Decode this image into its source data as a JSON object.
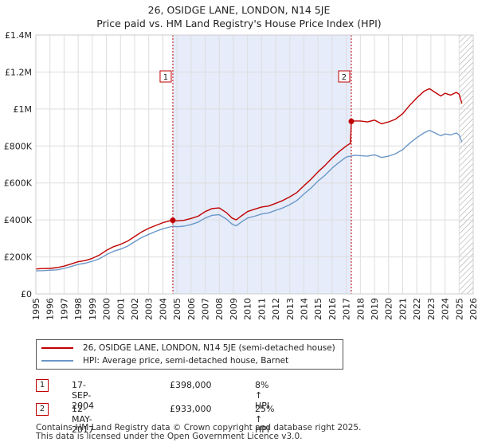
{
  "title": "26, OSIDGE LANE, LONDON, N14 5JE",
  "subtitle": "Price paid vs. HM Land Registry's House Price Index (HPI)",
  "colors": {
    "property": "#c00000",
    "hpi": "#6b97c8",
    "shade": "#e6ecfa",
    "hatch": "#999999",
    "grid": "#dddddd"
  },
  "chart_data": {
    "type": "line",
    "xlim": [
      1995,
      2026
    ],
    "ylim": [
      0,
      1400000
    ],
    "y_ticks": [
      0,
      200000,
      400000,
      600000,
      800000,
      1000000,
      1200000,
      1400000
    ],
    "y_tick_labels": [
      "£0",
      "£200K",
      "£400K",
      "£600K",
      "£800K",
      "£1M",
      "£1.2M",
      "£1.4M"
    ],
    "x_ticks": [
      "1995",
      "1996",
      "1997",
      "1998",
      "1999",
      "2000",
      "2001",
      "2002",
      "2003",
      "2004",
      "2005",
      "2006",
      "2007",
      "2008",
      "2009",
      "2010",
      "2011",
      "2012",
      "2013",
      "2014",
      "2015",
      "2016",
      "2017",
      "2018",
      "2019",
      "2020",
      "2021",
      "2022",
      "2023",
      "2024",
      "2025",
      "2026"
    ],
    "shaded_region": [
      2004.71,
      2017.36
    ],
    "forecast_from": 2025.0,
    "series": [
      {
        "name": "26, OSIDGE LANE, LONDON, N14 5JE (semi-detached house)",
        "color": "#c00000",
        "x": [
          1995.0,
          1995.5,
          1996.0,
          1996.5,
          1997.0,
          1997.5,
          1998.0,
          1998.5,
          1999.0,
          1999.5,
          2000.0,
          2000.5,
          2001.0,
          2001.5,
          2002.0,
          2002.5,
          2003.0,
          2003.5,
          2004.0,
          2004.5,
          2004.71,
          2005.0,
          2005.5,
          2006.0,
          2006.5,
          2007.0,
          2007.5,
          2008.0,
          2008.5,
          2008.9,
          2009.2,
          2009.5,
          2010.0,
          2010.5,
          2011.0,
          2011.5,
          2012.0,
          2012.5,
          2013.0,
          2013.5,
          2014.0,
          2014.5,
          2015.0,
          2015.5,
          2016.0,
          2016.5,
          2017.0,
          2017.3,
          2017.36,
          2017.6,
          2018.0,
          2018.5,
          2019.0,
          2019.5,
          2020.0,
          2020.5,
          2021.0,
          2021.5,
          2022.0,
          2022.5,
          2022.9,
          2023.3,
          2023.7,
          2024.0,
          2024.4,
          2024.8,
          2025.0,
          2025.2
        ],
        "values": [
          135000,
          137000,
          138000,
          142000,
          150000,
          162000,
          174000,
          180000,
          192000,
          210000,
          235000,
          255000,
          268000,
          285000,
          310000,
          335000,
          355000,
          370000,
          385000,
          395000,
          398000,
          395000,
          398000,
          408000,
          420000,
          445000,
          462000,
          465000,
          440000,
          410000,
          400000,
          418000,
          445000,
          458000,
          470000,
          475000,
          490000,
          505000,
          525000,
          548000,
          585000,
          620000,
          660000,
          695000,
          735000,
          770000,
          800000,
          815000,
          933000,
          935000,
          935000,
          930000,
          940000,
          920000,
          930000,
          945000,
          975000,
          1020000,
          1060000,
          1095000,
          1110000,
          1090000,
          1070000,
          1085000,
          1075000,
          1090000,
          1080000,
          1030000
        ]
      },
      {
        "name": "HPI: Average price, semi-detached house, Barnet",
        "color": "#6b97c8",
        "x": [
          1995.0,
          1995.5,
          1996.0,
          1996.5,
          1997.0,
          1997.5,
          1998.0,
          1998.5,
          1999.0,
          1999.5,
          2000.0,
          2000.5,
          2001.0,
          2001.5,
          2002.0,
          2002.5,
          2003.0,
          2003.5,
          2004.0,
          2004.5,
          2004.71,
          2005.0,
          2005.5,
          2006.0,
          2006.5,
          2007.0,
          2007.5,
          2008.0,
          2008.5,
          2008.9,
          2009.2,
          2009.5,
          2010.0,
          2010.5,
          2011.0,
          2011.5,
          2012.0,
          2012.5,
          2013.0,
          2013.5,
          2014.0,
          2014.5,
          2015.0,
          2015.5,
          2016.0,
          2016.5,
          2017.0,
          2017.36,
          2017.6,
          2018.0,
          2018.5,
          2019.0,
          2019.5,
          2020.0,
          2020.5,
          2021.0,
          2021.5,
          2022.0,
          2022.5,
          2022.9,
          2023.3,
          2023.7,
          2024.0,
          2024.4,
          2024.8,
          2025.0,
          2025.2
        ],
        "values": [
          125000,
          126000,
          128000,
          130000,
          138000,
          148000,
          160000,
          166000,
          176000,
          190000,
          212000,
          230000,
          242000,
          258000,
          282000,
          305000,
          322000,
          338000,
          352000,
          362000,
          366000,
          363000,
          366000,
          375000,
          388000,
          410000,
          425000,
          428000,
          405000,
          378000,
          368000,
          385000,
          410000,
          420000,
          432000,
          438000,
          452000,
          465000,
          483000,
          505000,
          540000,
          572000,
          610000,
          642000,
          680000,
          712000,
          740000,
          746000,
          750000,
          748000,
          745000,
          752000,
          738000,
          745000,
          758000,
          780000,
          815000,
          845000,
          870000,
          885000,
          870000,
          855000,
          865000,
          860000,
          870000,
          860000,
          820000
        ]
      }
    ],
    "markers": [
      {
        "label": "1",
        "x": 2004.71,
        "value": 398000
      },
      {
        "label": "2",
        "x": 2017.36,
        "value": 933000
      }
    ]
  },
  "legend": {
    "property_label": "26, OSIDGE LANE, LONDON, N14 5JE (semi-detached house)",
    "hpi_label": "HPI: Average price, semi-detached house, Barnet"
  },
  "transactions": [
    {
      "num": "1",
      "date": "17-SEP-2004",
      "price": "£398,000",
      "hpi": "8% ↑ HPI"
    },
    {
      "num": "2",
      "date": "12-MAY-2017",
      "price": "£933,000",
      "hpi": "25% ↑ HPI"
    }
  ],
  "footer": {
    "line1": "Contains HM Land Registry data © Crown copyright and database right 2025.",
    "line2": "This data is licensed under the Open Government Licence v3.0."
  }
}
